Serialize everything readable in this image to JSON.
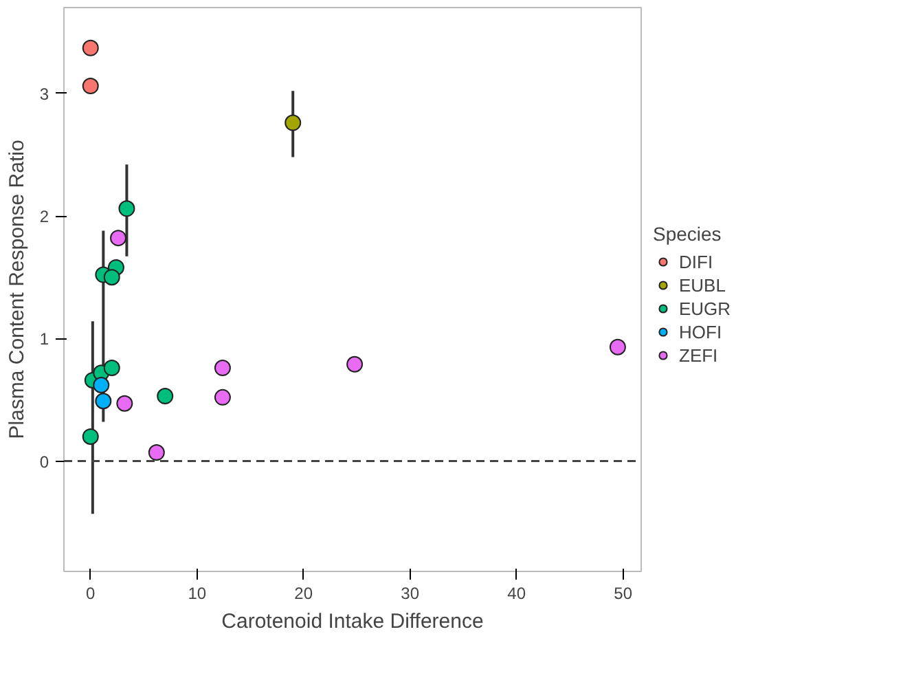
{
  "chart_data": {
    "type": "scatter",
    "xlabel": "Carotenoid Intake Difference",
    "ylabel": "Plasma Content Response Ratio",
    "legend_title": "Species",
    "legend": "right",
    "grid": false,
    "marker": "circle",
    "xlim": [
      -2.5,
      51.7
    ],
    "ylim": [
      -0.9,
      3.7
    ],
    "xticks": [
      0,
      10,
      20,
      30,
      40,
      50
    ],
    "yticks": [
      0,
      1,
      2,
      3
    ],
    "ref_lines": [
      {
        "axis": "y",
        "value": 0,
        "label": null,
        "line_style": "dashed",
        "color": "#444444"
      }
    ],
    "series": [
      {
        "name": "DIFI",
        "color": "#f8766d",
        "x": [
          0,
          0
        ],
        "values": [
          3.37,
          3.06
        ],
        "errors": [
          null,
          null
        ]
      },
      {
        "name": "EUBL",
        "color": "#a3a500",
        "x": [
          19
        ],
        "values": [
          2.76
        ],
        "errors": [
          [
            2.48,
            3.02
          ]
        ]
      },
      {
        "name": "EUGR",
        "color": "#00bf7d",
        "x": [
          3.4,
          1.2,
          2.4,
          2,
          0.2,
          1,
          2,
          0,
          7
        ],
        "values": [
          2.06,
          1.52,
          1.58,
          1.5,
          0.66,
          0.72,
          0.76,
          0.2,
          0.53
        ],
        "errors": [
          [
            1.67,
            2.42
          ],
          [
            0.32,
            1.88
          ],
          null,
          null,
          [
            -0.43,
            1.14
          ],
          null,
          null,
          null,
          null
        ]
      },
      {
        "name": "HOFI",
        "color": "#00b0f6",
        "x": [
          1,
          1.2
        ],
        "values": [
          0.62,
          0.49
        ],
        "errors": [
          null,
          null
        ]
      },
      {
        "name": "ZEFI",
        "color": "#e76bf3",
        "x": [
          2.6,
          3.2,
          6.2,
          12.4,
          12.4,
          24.8,
          49.5
        ],
        "values": [
          1.82,
          0.47,
          0.07,
          0.76,
          0.52,
          0.79,
          0.93
        ],
        "errors": [
          null,
          null,
          null,
          null,
          null,
          null,
          null
        ]
      }
    ]
  }
}
